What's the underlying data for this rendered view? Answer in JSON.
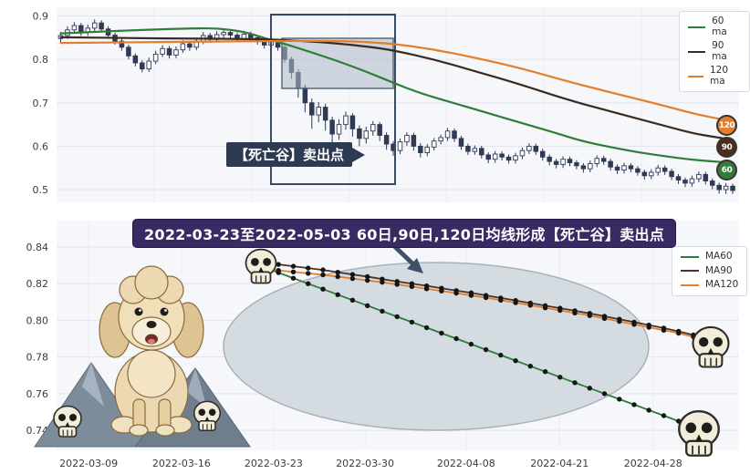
{
  "top_chart": {
    "annotation_text": "【死亡谷】卖出点",
    "legend": [
      {
        "label": "60 ma",
        "color": "#2f7d38"
      },
      {
        "label": "90 ma",
        "color": "#3a2b22"
      },
      {
        "label": "120 ma",
        "color": "#e07f2e"
      }
    ],
    "badges": [
      {
        "label": "120",
        "color": "#e07f2e"
      },
      {
        "label": "90",
        "color": "#4a2c1e"
      },
      {
        "label": "60",
        "color": "#2f7d38"
      }
    ]
  },
  "bottom_chart": {
    "title": "2022-03-23至2022-05-03 60日,90日,120日均线形成【死亡谷】卖出点",
    "legend": [
      {
        "label": "MA60",
        "color": "#2f7d38"
      },
      {
        "label": "MA90",
        "color": "#4a332b"
      },
      {
        "label": "MA120",
        "color": "#e07f2e"
      }
    ]
  },
  "chart_data": [
    {
      "type": "candlestick",
      "ylim": [
        0.4707,
        0.92
      ],
      "yticks": [
        0.9,
        0.8,
        0.7,
        0.6,
        0.5
      ],
      "grid": true,
      "legend_position": "upper right",
      "down_color": "#2f3a55",
      "up_color": "#fdfdfd",
      "ohlc_order": [
        "open",
        "high",
        "low",
        "close"
      ],
      "candles_ohlc": [
        [
          0.848,
          0.863,
          0.84,
          0.855
        ],
        [
          0.855,
          0.876,
          0.847,
          0.868
        ],
        [
          0.868,
          0.886,
          0.86,
          0.878
        ],
        [
          0.878,
          0.884,
          0.854,
          0.862
        ],
        [
          0.862,
          0.88,
          0.854,
          0.872
        ],
        [
          0.872,
          0.892,
          0.864,
          0.884
        ],
        [
          0.884,
          0.89,
          0.862,
          0.87
        ],
        [
          0.87,
          0.876,
          0.848,
          0.856
        ],
        [
          0.856,
          0.862,
          0.834,
          0.842
        ],
        [
          0.842,
          0.85,
          0.82,
          0.828
        ],
        [
          0.828,
          0.834,
          0.8,
          0.808
        ],
        [
          0.808,
          0.814,
          0.784,
          0.792
        ],
        [
          0.792,
          0.798,
          0.77,
          0.778
        ],
        [
          0.778,
          0.804,
          0.771,
          0.796
        ],
        [
          0.796,
          0.82,
          0.789,
          0.812
        ],
        [
          0.812,
          0.833,
          0.805,
          0.825
        ],
        [
          0.825,
          0.831,
          0.802,
          0.81
        ],
        [
          0.81,
          0.83,
          0.803,
          0.822
        ],
        [
          0.822,
          0.844,
          0.815,
          0.836
        ],
        [
          0.836,
          0.842,
          0.82,
          0.828
        ],
        [
          0.828,
          0.85,
          0.821,
          0.842
        ],
        [
          0.842,
          0.863,
          0.835,
          0.855
        ],
        [
          0.855,
          0.861,
          0.838,
          0.846
        ],
        [
          0.846,
          0.865,
          0.839,
          0.857
        ],
        [
          0.857,
          0.87,
          0.85,
          0.862
        ],
        [
          0.862,
          0.868,
          0.848,
          0.856
        ],
        [
          0.856,
          0.862,
          0.84,
          0.848
        ],
        [
          0.848,
          0.866,
          0.841,
          0.858
        ],
        [
          0.858,
          0.864,
          0.842,
          0.85
        ],
        [
          0.85,
          0.856,
          0.834,
          0.842
        ],
        [
          0.842,
          0.848,
          0.825,
          0.833
        ],
        [
          0.833,
          0.848,
          0.826,
          0.84
        ],
        [
          0.84,
          0.846,
          0.82,
          0.828
        ],
        [
          0.828,
          0.834,
          0.792,
          0.8
        ],
        [
          0.8,
          0.806,
          0.755,
          0.77
        ],
        [
          0.77,
          0.778,
          0.712,
          0.735
        ],
        [
          0.735,
          0.742,
          0.678,
          0.7
        ],
        [
          0.7,
          0.71,
          0.64,
          0.672
        ],
        [
          0.672,
          0.702,
          0.655,
          0.69
        ],
        [
          0.69,
          0.698,
          0.636,
          0.66
        ],
        [
          0.66,
          0.668,
          0.605,
          0.628
        ],
        [
          0.628,
          0.662,
          0.615,
          0.65
        ],
        [
          0.65,
          0.68,
          0.638,
          0.67
        ],
        [
          0.67,
          0.676,
          0.622,
          0.64
        ],
        [
          0.64,
          0.648,
          0.6,
          0.618
        ],
        [
          0.618,
          0.645,
          0.606,
          0.635
        ],
        [
          0.635,
          0.658,
          0.624,
          0.65
        ],
        [
          0.65,
          0.656,
          0.612,
          0.625
        ],
        [
          0.625,
          0.632,
          0.592,
          0.605
        ],
        [
          0.605,
          0.612,
          0.578,
          0.59
        ],
        [
          0.59,
          0.618,
          0.582,
          0.61
        ],
        [
          0.61,
          0.632,
          0.601,
          0.625
        ],
        [
          0.625,
          0.631,
          0.59,
          0.6
        ],
        [
          0.6,
          0.607,
          0.574,
          0.585
        ],
        [
          0.585,
          0.605,
          0.577,
          0.598
        ],
        [
          0.598,
          0.619,
          0.59,
          0.612
        ],
        [
          0.612,
          0.627,
          0.604,
          0.62
        ],
        [
          0.62,
          0.642,
          0.612,
          0.635
        ],
        [
          0.635,
          0.641,
          0.61,
          0.618
        ],
        [
          0.618,
          0.624,
          0.592,
          0.6
        ],
        [
          0.6,
          0.606,
          0.58,
          0.588
        ],
        [
          0.588,
          0.602,
          0.58,
          0.595
        ],
        [
          0.595,
          0.601,
          0.572,
          0.58
        ],
        [
          0.58,
          0.586,
          0.561,
          0.57
        ],
        [
          0.57,
          0.589,
          0.562,
          0.582
        ],
        [
          0.582,
          0.588,
          0.567,
          0.575
        ],
        [
          0.575,
          0.581,
          0.56,
          0.568
        ],
        [
          0.568,
          0.585,
          0.56,
          0.578
        ],
        [
          0.578,
          0.597,
          0.57,
          0.59
        ],
        [
          0.59,
          0.607,
          0.582,
          0.6
        ],
        [
          0.6,
          0.606,
          0.58,
          0.588
        ],
        [
          0.588,
          0.594,
          0.567,
          0.575
        ],
        [
          0.575,
          0.581,
          0.556,
          0.565
        ],
        [
          0.565,
          0.571,
          0.549,
          0.558
        ],
        [
          0.558,
          0.577,
          0.55,
          0.57
        ],
        [
          0.57,
          0.576,
          0.554,
          0.562
        ],
        [
          0.562,
          0.568,
          0.547,
          0.555
        ],
        [
          0.555,
          0.561,
          0.539,
          0.548
        ],
        [
          0.548,
          0.567,
          0.54,
          0.56
        ],
        [
          0.56,
          0.579,
          0.552,
          0.572
        ],
        [
          0.572,
          0.578,
          0.557,
          0.565
        ],
        [
          0.565,
          0.571,
          0.544,
          0.552
        ],
        [
          0.552,
          0.558,
          0.536,
          0.545
        ],
        [
          0.545,
          0.562,
          0.537,
          0.555
        ],
        [
          0.555,
          0.561,
          0.54,
          0.548
        ],
        [
          0.548,
          0.554,
          0.532,
          0.54
        ],
        [
          0.54,
          0.546,
          0.523,
          0.532
        ],
        [
          0.532,
          0.547,
          0.524,
          0.54
        ],
        [
          0.54,
          0.557,
          0.532,
          0.55
        ],
        [
          0.55,
          0.556,
          0.534,
          0.542
        ],
        [
          0.542,
          0.548,
          0.522,
          0.53
        ],
        [
          0.53,
          0.536,
          0.513,
          0.522
        ],
        [
          0.522,
          0.528,
          0.506,
          0.515
        ],
        [
          0.515,
          0.532,
          0.507,
          0.525
        ],
        [
          0.525,
          0.542,
          0.517,
          0.535
        ],
        [
          0.535,
          0.541,
          0.512,
          0.52
        ],
        [
          0.52,
          0.526,
          0.501,
          0.51
        ],
        [
          0.51,
          0.516,
          0.491,
          0.5
        ],
        [
          0.5,
          0.515,
          0.49,
          0.508
        ],
        [
          0.508,
          0.514,
          0.49,
          0.498
        ]
      ],
      "ma_series": [
        {
          "name": "60 ma",
          "color": "#2f7d38",
          "points": [
            [
              0,
              0.86
            ],
            [
              6,
              0.864
            ],
            [
              12,
              0.868
            ],
            [
              18,
              0.871
            ],
            [
              23,
              0.872
            ],
            [
              27,
              0.864
            ],
            [
              30,
              0.849
            ],
            [
              33,
              0.836
            ],
            [
              37,
              0.816
            ],
            [
              41,
              0.795
            ],
            [
              45,
              0.772
            ],
            [
              49,
              0.746
            ],
            [
              53,
              0.722
            ],
            [
              58,
              0.699
            ],
            [
              63,
              0.676
            ],
            [
              68,
              0.653
            ],
            [
              73,
              0.63
            ],
            [
              77,
              0.611
            ],
            [
              81,
              0.598
            ],
            [
              85,
              0.586
            ],
            [
              89,
              0.577
            ],
            [
              93,
              0.569
            ],
            [
              96,
              0.565
            ],
            [
              99,
              0.562
            ]
          ]
        },
        {
          "name": "90 ma",
          "color": "#3a2b22",
          "points": [
            [
              0,
              0.851
            ],
            [
              10,
              0.849
            ],
            [
              20,
              0.848
            ],
            [
              27,
              0.847
            ],
            [
              31,
              0.846
            ],
            [
              36,
              0.842
            ],
            [
              40,
              0.838
            ],
            [
              45,
              0.83
            ],
            [
              49,
              0.821
            ],
            [
              55,
              0.8
            ],
            [
              61,
              0.773
            ],
            [
              68,
              0.741
            ],
            [
              74,
              0.71
            ],
            [
              81,
              0.68
            ],
            [
              88,
              0.651
            ],
            [
              93,
              0.63
            ],
            [
              96,
              0.622
            ],
            [
              99,
              0.615
            ]
          ]
        },
        {
          "name": "120 ma",
          "color": "#e07f2e",
          "points": [
            [
              0,
              0.838
            ],
            [
              10,
              0.839
            ],
            [
              20,
              0.841
            ],
            [
              31,
              0.842
            ],
            [
              40,
              0.843
            ],
            [
              45,
              0.84
            ],
            [
              49,
              0.836
            ],
            [
              55,
              0.823
            ],
            [
              61,
              0.804
            ],
            [
              68,
              0.779
            ],
            [
              74,
              0.752
            ],
            [
              81,
              0.724
            ],
            [
              88,
              0.697
            ],
            [
              93,
              0.676
            ],
            [
              96,
              0.666
            ],
            [
              99,
              0.657
            ]
          ]
        }
      ]
    },
    {
      "type": "line",
      "title": "2022-03-23至2022-05-03 60日,90日,120日均线形成【死亡谷】卖出点",
      "ylim": [
        0.7291,
        0.8544
      ],
      "yticks": [
        0.84,
        0.82,
        0.8,
        0.78,
        0.76,
        0.74
      ],
      "grid": true,
      "legend_position": "upper right",
      "x_tick_labels": [
        "2022-03-09",
        "2022-03-16",
        "2022-03-23",
        "2022-03-30",
        "2022-04-08",
        "2022-04-21",
        "2022-04-28"
      ],
      "x_tick_pos": [
        0.047,
        0.183,
        0.318,
        0.452,
        0.6,
        0.737,
        0.874
      ],
      "marker_color": "#151515",
      "series": [
        {
          "name": "MA60",
          "color": "#2f7d38",
          "values": [
            0.829,
            0.826,
            0.823,
            0.82,
            0.817,
            0.814,
            0.811,
            0.808,
            0.805,
            0.802,
            0.799,
            0.796,
            0.793,
            0.79,
            0.787,
            0.784,
            0.781,
            0.778,
            0.775,
            0.772,
            0.769,
            0.766,
            0.763,
            0.76,
            0.757,
            0.754,
            0.751,
            0.748,
            0.745,
            0.741
          ]
        },
        {
          "name": "MA90",
          "color": "#4a332b",
          "values": [
            0.8315,
            0.8305,
            0.8295,
            0.8285,
            0.8275,
            0.8262,
            0.825,
            0.8238,
            0.8225,
            0.8212,
            0.82,
            0.8188,
            0.8175,
            0.8162,
            0.815,
            0.8136,
            0.8122,
            0.8108,
            0.8094,
            0.808,
            0.8066,
            0.8052,
            0.8038,
            0.8022,
            0.8006,
            0.799,
            0.7974,
            0.7958,
            0.794,
            0.792
          ]
        },
        {
          "name": "MA120",
          "color": "#e07f2e",
          "values": [
            0.828,
            0.8272,
            0.8264,
            0.8256,
            0.8248,
            0.8238,
            0.8228,
            0.8218,
            0.8208,
            0.8196,
            0.8184,
            0.8172,
            0.816,
            0.8148,
            0.8136,
            0.8124,
            0.811,
            0.8096,
            0.8082,
            0.8068,
            0.8054,
            0.804,
            0.8026,
            0.801,
            0.7994,
            0.7978,
            0.7962,
            0.7946,
            0.793,
            0.791
          ]
        }
      ]
    }
  ]
}
